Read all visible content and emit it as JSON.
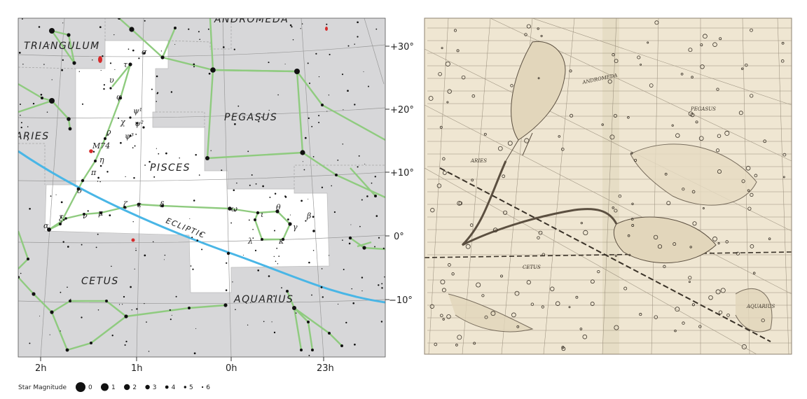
{
  "colors": {
    "sky": "#d7d7d9",
    "constellation_area": "#ffffff",
    "lines": "#7ac16a",
    "ecliptic": "#45b9e8",
    "stars": "#111111",
    "paper": "#efe6d2",
    "ink": "#4a3f33"
  },
  "chart": {
    "constellations": {
      "triangulum": "TRIANGULUM",
      "andromeda": "ANDROMEDA",
      "pegasus": "PEGASUS",
      "aries": "ARIES",
      "pisces": "PISCES",
      "cetus": "CETUS",
      "aquarius": "AQUARIUS"
    },
    "ecliptic_label": "ECLIPTIC",
    "messier_label": "M74",
    "greek": {
      "sigma": "σ",
      "tau": "τ",
      "upsilon": "υ",
      "phi": "φ",
      "chi": "χ",
      "psi1": "ψ¹",
      "psi2": "ψ²",
      "psi3": "ψ³",
      "rho": "ρ",
      "eta": "η",
      "pi": "π",
      "omicron": "ο",
      "zeta": "ζ",
      "epsilon": "ε",
      "delta": "δ",
      "omega": "ω",
      "iota": "ι",
      "theta": "θ",
      "gamma": "γ",
      "beta": "β",
      "lambda": "λ",
      "kappa": "κ",
      "alpha": "α",
      "xi": "ξ",
      "nu": "ν",
      "mu": "μ"
    },
    "dec_labels": {
      "p30": "+30°",
      "p20": "+20°",
      "p10": "+10°",
      "zero": "0°",
      "m10": "−10°"
    },
    "ra_labels": {
      "h2": "2h",
      "h1": "1h",
      "h0": "0h",
      "h23": "23h"
    }
  },
  "legend": {
    "title": "Star Magnitude",
    "magnitudes": [
      "0",
      "1",
      "2",
      "3",
      "4",
      "5",
      "6"
    ]
  },
  "historical": {
    "labels": {
      "andromeda": "ANDROMEDA",
      "pegasus": "PEGASUS",
      "aries": "ARIES",
      "cetus": "CETUS",
      "aquarius": "AQUARIUS"
    }
  }
}
